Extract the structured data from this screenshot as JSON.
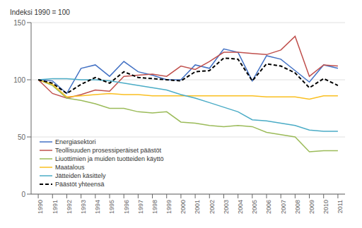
{
  "chart_data": {
    "type": "line",
    "ylabel": "Indeksi 1990 = 100",
    "x": [
      1990,
      1991,
      1992,
      1993,
      1994,
      1995,
      1996,
      1997,
      1998,
      1999,
      2000,
      2001,
      2002,
      2003,
      2004,
      2005,
      2006,
      2007,
      2008,
      2009,
      2010,
      2011
    ],
    "series": [
      {
        "name": "Energiasektori",
        "color": "#4472C4",
        "line_style": "solid",
        "values": [
          100,
          99,
          88,
          110,
          113,
          103,
          116,
          107,
          104,
          100,
          100,
          113,
          110,
          127,
          124,
          99,
          121,
          118,
          108,
          98,
          113,
          110
        ]
      },
      {
        "name": "Teollisuuden prosessiperäiset päästöt",
        "color": "#C0504D",
        "line_style": "solid",
        "values": [
          100,
          88,
          84,
          87,
          91,
          90,
          103,
          104,
          105,
          103,
          112,
          109,
          116,
          124,
          124,
          123,
          122,
          126,
          138,
          103,
          113,
          112
        ]
      },
      {
        "name": "Liuottimien ja muiden tuotteiden käyttö",
        "color": "#9BBB59",
        "line_style": "solid",
        "values": [
          100,
          95,
          84,
          82,
          79,
          75,
          75,
          72,
          71,
          72,
          63,
          62,
          60,
          59,
          60,
          59,
          54,
          52,
          50,
          37,
          38,
          38
        ]
      },
      {
        "name": "Maatalous",
        "color": "#FABF20",
        "line_style": "solid",
        "values": [
          100,
          96,
          85,
          86,
          87,
          88,
          87,
          87,
          86,
          86,
          86,
          86,
          86,
          86,
          86,
          86,
          85,
          85,
          85,
          83,
          86,
          86
        ]
      },
      {
        "name": "Jätteiden käsittely",
        "color": "#4BACC6",
        "line_style": "solid",
        "values": [
          100,
          101,
          101,
          100,
          100,
          99,
          97,
          95,
          93,
          91,
          87,
          84,
          80,
          76,
          72,
          65,
          64,
          62,
          60,
          56,
          55,
          55
        ]
      },
      {
        "name": "Päästöt yhteensä",
        "color": "#000000",
        "line_style": "dashed",
        "values": [
          100,
          97,
          88,
          96,
          102,
          97,
          107,
          102,
          101,
          100,
          99,
          107,
          108,
          119,
          118,
          99,
          114,
          112,
          106,
          93,
          101,
          95
        ]
      }
    ],
    "xlim": [
      1989.5,
      2011.5
    ],
    "xticks": [
      1990,
      1991,
      1992,
      1993,
      1994,
      1995,
      1996,
      1997,
      1998,
      1999,
      2000,
      2001,
      2002,
      2003,
      2004,
      2005,
      2006,
      2007,
      2008,
      2009,
      2010,
      2011
    ],
    "ylim": [
      0,
      150
    ],
    "yticks": [
      0,
      50,
      100,
      150
    ],
    "grid": true,
    "legend": "lower left"
  }
}
